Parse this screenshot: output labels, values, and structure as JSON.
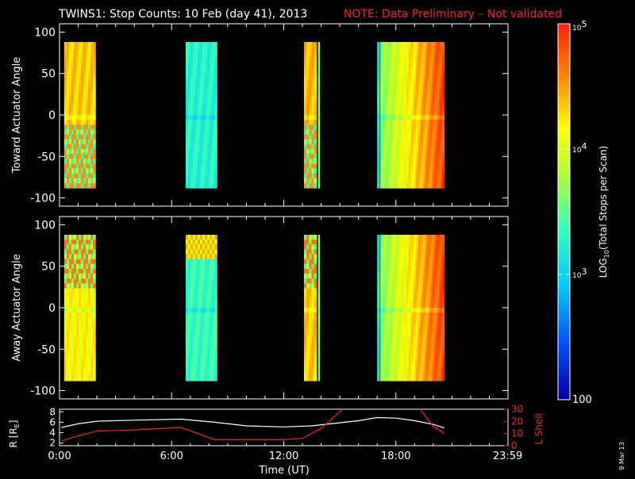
{
  "title": "TWINS1: Stop Counts: 10 Feb (day  41), 2013",
  "note": "NOTE: Data Preliminary – Not validated",
  "date_stamp": "9 Mar 13",
  "colors": {
    "background": "#000000",
    "axes": "#ffffff",
    "note": "#ff2020",
    "r_line": "#ffffff",
    "lshell_line": "#ff2020"
  },
  "chart_data": [
    {
      "type": "heatmap",
      "name": "toward",
      "ylabel": "Toward Actuator Angle",
      "ylim": [
        -110,
        110
      ],
      "yticks": [
        -100,
        -50,
        0,
        50,
        100
      ],
      "xlim_hours": [
        0,
        24
      ],
      "angle_range": [
        -88,
        88
      ],
      "blocks": [
        {
          "start": "0:15",
          "end": "1:55",
          "level": 0.78,
          "pattern": "mixed-low"
        },
        {
          "start": "6:45",
          "end": "8:25",
          "level": 0.42
        },
        {
          "start": "13:05",
          "end": "13:45",
          "level": 0.8,
          "pattern": "mixed-low"
        },
        {
          "start": "13:50",
          "end": "13:55",
          "level": 0.55
        },
        {
          "start": "17:00",
          "end": "17:07",
          "level": 0.4
        },
        {
          "start": "17:10",
          "end": "20:35",
          "level": 0.55,
          "gradient_to": 0.95
        }
      ]
    },
    {
      "type": "heatmap",
      "name": "away",
      "ylabel": "Away Actuator Angle",
      "ylim": [
        -110,
        110
      ],
      "yticks": [
        -100,
        -50,
        0,
        50,
        100
      ],
      "xlim_hours": [
        0,
        24
      ],
      "angle_range": [
        -88,
        88
      ],
      "blocks": [
        {
          "start": "0:15",
          "end": "1:55",
          "level": 0.72,
          "pattern": "mixed-high"
        },
        {
          "start": "6:45",
          "end": "8:25",
          "level": 0.45,
          "pattern": "hot-top"
        },
        {
          "start": "13:05",
          "end": "13:45",
          "level": 0.78,
          "pattern": "mixed-high"
        },
        {
          "start": "13:50",
          "end": "13:55",
          "level": 0.55
        },
        {
          "start": "17:00",
          "end": "17:07",
          "level": 0.4
        },
        {
          "start": "17:10",
          "end": "20:35",
          "level": 0.55,
          "gradient_to": 0.95
        }
      ]
    },
    {
      "type": "line",
      "name": "orbit",
      "ylabel_left": "R [R",
      "ylabel_left_sub": "E",
      "ylabel_left_end": "]",
      "ylabel_right": "L Shell",
      "ylim_left": [
        1.5,
        8.5
      ],
      "ylim_right": [
        0,
        30
      ],
      "yticks_left": [
        2,
        4,
        6,
        8
      ],
      "yticks_right": [
        0,
        10,
        20,
        30
      ],
      "xlabel": "Time (UT)",
      "xticks": [
        "0:00",
        "6:00",
        "12:00",
        "18:00",
        "23:59"
      ],
      "xtick_hours": [
        0,
        6,
        12,
        18,
        23.983
      ],
      "series": [
        {
          "axis": "left",
          "color": "#ffffff",
          "x": [
            0.1,
            1.0,
            2.0,
            4.0,
            6.5,
            8.3,
            10.0,
            12.0,
            13.5,
            14.5,
            16.0,
            17.0,
            18.0,
            19.0,
            20.0,
            20.6
          ],
          "y": [
            5.0,
            5.7,
            6.2,
            6.4,
            6.6,
            6.0,
            5.3,
            5.1,
            5.3,
            5.7,
            6.3,
            6.9,
            6.8,
            6.3,
            5.6,
            4.9
          ]
        },
        {
          "axis": "right",
          "color": "#ff2020",
          "x": [
            0.1,
            1.0,
            2.0,
            4.0,
            6.5,
            8.3,
            10.0,
            12.0,
            13.0,
            14.0,
            15.3,
            19.2,
            20.0,
            20.6
          ],
          "y": [
            4,
            8,
            12,
            13,
            15,
            5,
            5,
            5,
            6,
            14,
            32,
            32,
            16,
            10
          ]
        }
      ]
    }
  ],
  "colorbar": {
    "label_pre": "LOG",
    "label_sub": "10",
    "label_post": "(Total Stops per Scan)",
    "ticks": [
      {
        "base": "10",
        "exp": "5",
        "pos": 1.0
      },
      {
        "base": "10",
        "exp": "4",
        "pos": 0.667
      },
      {
        "base": "10",
        "exp": "3",
        "pos": 0.333
      },
      {
        "label": "100",
        "pos": 0.0
      }
    ]
  }
}
